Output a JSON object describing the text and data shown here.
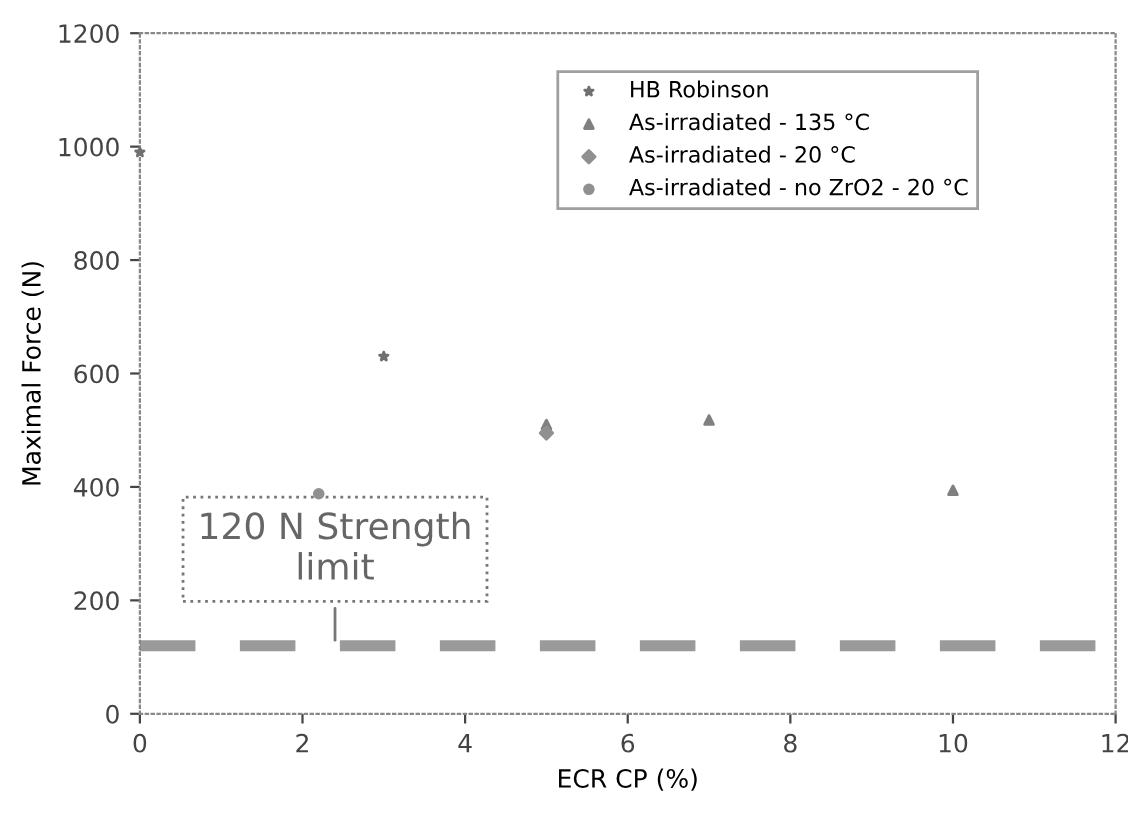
{
  "chart_data": {
    "type": "scatter",
    "xlabel": "ECR CP (%)",
    "ylabel": "Maximal Force (N)",
    "xlim": [
      0,
      12
    ],
    "xticks": [
      0,
      2,
      4,
      6,
      8,
      10,
      12
    ],
    "ylim": [
      0,
      1200
    ],
    "yticks": [
      0,
      200,
      400,
      600,
      800,
      1000,
      1200
    ],
    "grid": false,
    "legend": "top right",
    "series": [
      {
        "name": "HB Robinson",
        "color": "#707070",
        "marker": "star",
        "x": [
          0,
          3
        ],
        "values": [
          990,
          630
        ]
      },
      {
        "name": "As-irradiated - 135 °C",
        "color": "#808080",
        "marker": "triangle",
        "x": [
          5,
          7,
          10
        ],
        "values": [
          510,
          518,
          394
        ]
      },
      {
        "name": "As-irradiated - 20 °C",
        "color": "#909090",
        "marker": "diamond",
        "x": [
          5
        ],
        "values": [
          495
        ]
      },
      {
        "name": "As-irradiated - no ZrO2 - 20 °C",
        "color": "#909090",
        "marker": "circle",
        "x": [
          2.2
        ],
        "values": [
          388
        ]
      }
    ],
    "ref_lines": [
      {
        "axis": "y",
        "value": 120,
        "color": "#9a9a9a",
        "line_style": "dashed"
      }
    ],
    "annotations": [
      {
        "text": "120 N Strength\nlimit",
        "x": 2.4,
        "y": 120
      }
    ]
  }
}
